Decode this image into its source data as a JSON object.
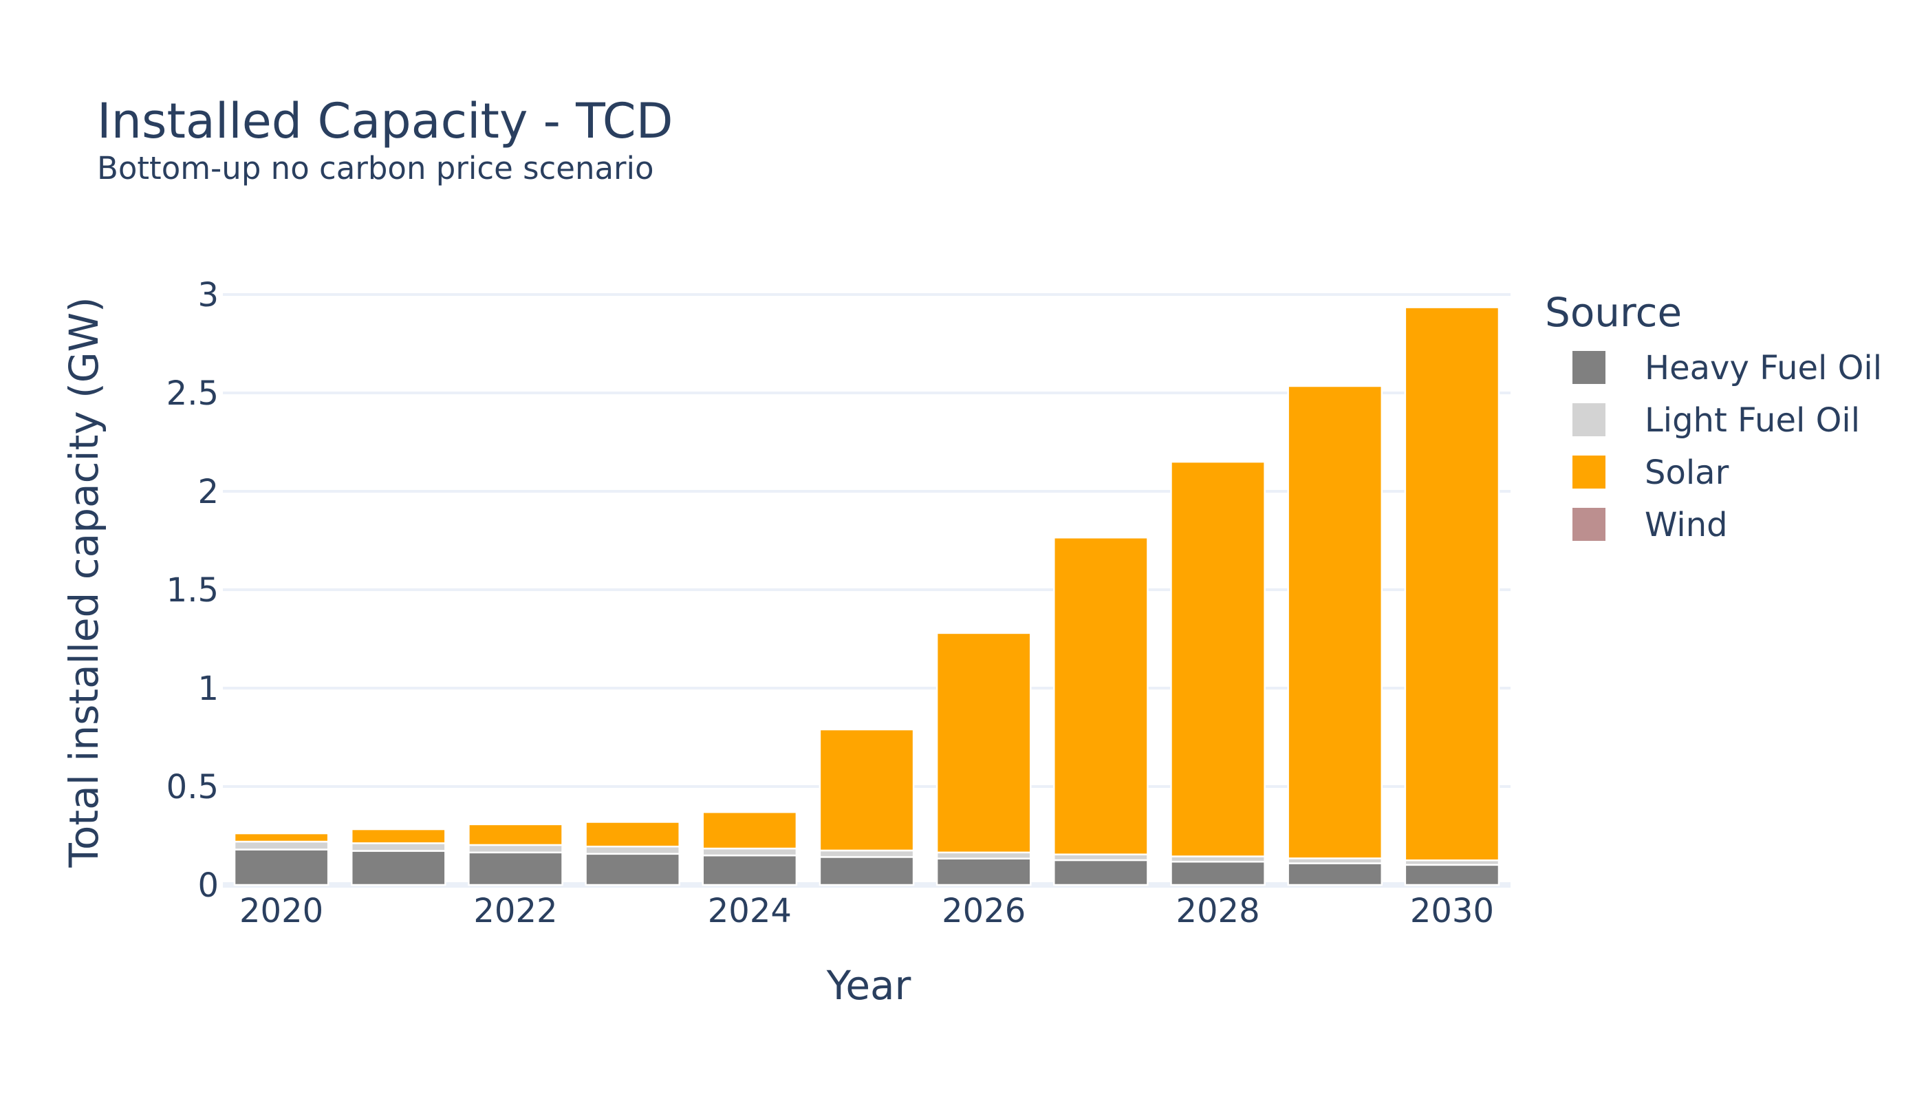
{
  "chart_data": {
    "type": "bar",
    "stacked": true,
    "title": "Installed Capacity - TCD",
    "subtitle": "Bottom-up no carbon price scenario",
    "xlabel": "Year",
    "ylabel": "Total installed capacity (GW)",
    "x": [
      2020,
      2021,
      2022,
      2023,
      2024,
      2025,
      2026,
      2027,
      2028,
      2029,
      2030
    ],
    "xticks": [
      2020,
      2022,
      2024,
      2026,
      2028,
      2030
    ],
    "ylim": [
      0,
      3.1
    ],
    "yticks": [
      {
        "value": 0,
        "label": "0"
      },
      {
        "value": 0.5,
        "label": "0.5"
      },
      {
        "value": 1,
        "label": "1"
      },
      {
        "value": 1.5,
        "label": "1.5"
      },
      {
        "value": 2,
        "label": "2"
      },
      {
        "value": 2.5,
        "label": "2.5"
      },
      {
        "value": 3,
        "label": "3"
      }
    ],
    "grid": true,
    "legend": {
      "title": "Source",
      "position": "right"
    },
    "series": [
      {
        "name": "Heavy Fuel Oil",
        "color": "#808080",
        "values": [
          0.18,
          0.173,
          0.165,
          0.158,
          0.15,
          0.142,
          0.134,
          0.126,
          0.118,
          0.11,
          0.102
        ]
      },
      {
        "name": "Light Fuel Oil",
        "color": "#d3d3d3",
        "values": [
          0.04,
          0.039,
          0.038,
          0.037,
          0.035,
          0.033,
          0.031,
          0.029,
          0.027,
          0.025,
          0.023
        ]
      },
      {
        "name": "Solar",
        "color": "#ffa500",
        "values": [
          0.042,
          0.071,
          0.105,
          0.125,
          0.185,
          0.615,
          1.115,
          1.61,
          2.005,
          2.4,
          2.81
        ]
      },
      {
        "name": "Wind",
        "color": "#bc8f8f",
        "values": [
          0,
          0,
          0,
          0,
          0,
          0,
          0,
          0,
          0,
          0,
          0
        ]
      }
    ]
  }
}
